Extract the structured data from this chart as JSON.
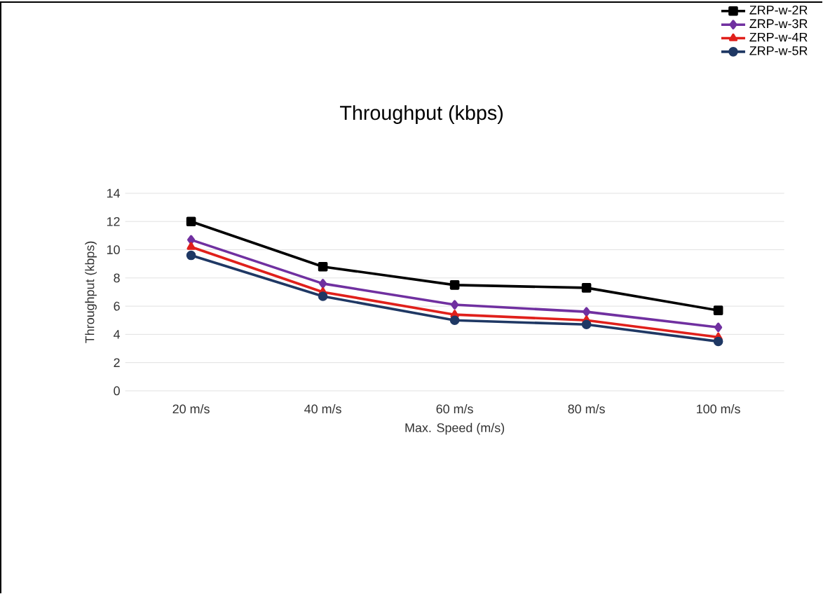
{
  "chart_data": {
    "type": "line",
    "title": "Throughput (kbps)",
    "xlabel": "Max. Speed (m/s)",
    "ylabel": "Throughput (kbps)",
    "categories": [
      "20 m/s",
      "40 m/s",
      "60 m/s",
      "80 m/s",
      "100 m/s"
    ],
    "series": [
      {
        "name": "ZRP-w-2R",
        "color": "#000000",
        "marker": "square",
        "values": [
          12,
          8.8,
          7.5,
          7.3,
          5.7
        ]
      },
      {
        "name": "ZRP-w-3R",
        "color": "#7030a0",
        "marker": "diamond",
        "values": [
          10.7,
          7.6,
          6.1,
          5.6,
          4.5
        ]
      },
      {
        "name": "ZRP-w-4R",
        "color": "#e0201b",
        "marker": "triangle",
        "values": [
          10.2,
          7.0,
          5.4,
          5.0,
          3.8
        ]
      },
      {
        "name": "ZRP-w-5R",
        "color": "#1f3864",
        "marker": "circle",
        "values": [
          9.6,
          6.7,
          5.0,
          4.7,
          3.5
        ]
      }
    ],
    "ylim": [
      0,
      14
    ],
    "yticks": [
      0,
      2,
      4,
      6,
      8,
      10,
      12,
      14
    ],
    "grid": "y",
    "legend": "top right",
    "line_style": "solid"
  }
}
